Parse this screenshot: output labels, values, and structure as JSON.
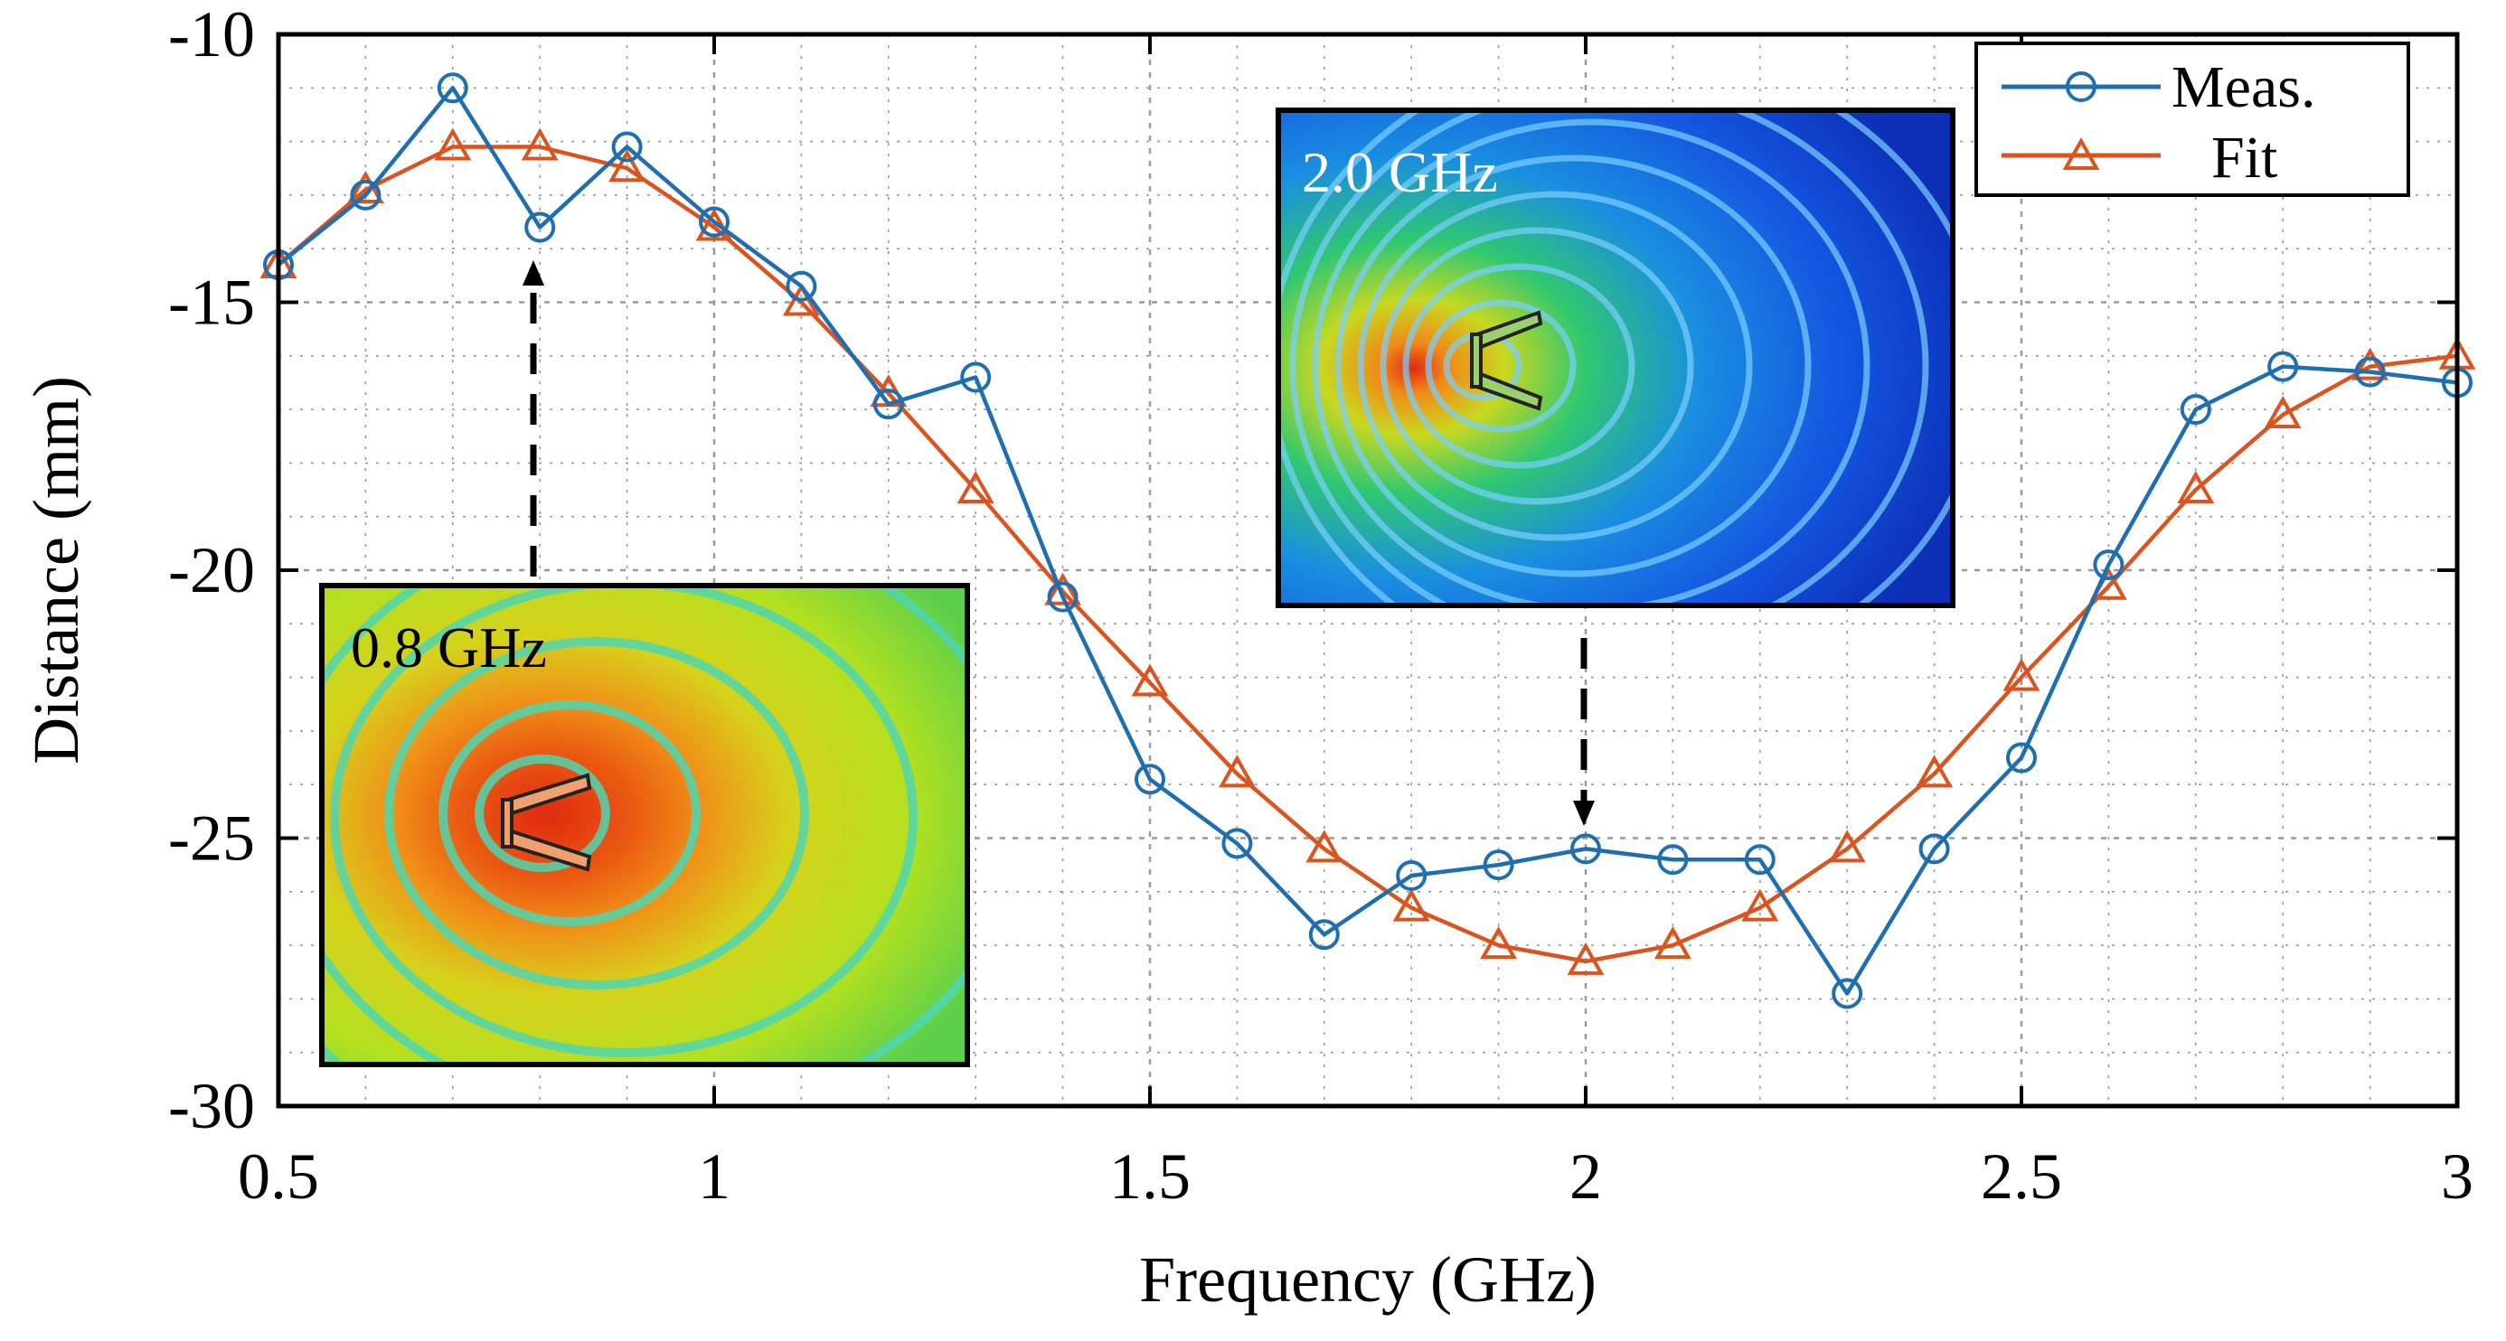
{
  "chart_data": {
    "type": "line",
    "title": "",
    "xlabel": "Frequency (GHz)",
    "ylabel": "Distance (mm)",
    "xlim": [
      0.5,
      3
    ],
    "ylim": [
      -30,
      -10
    ],
    "xticks": [
      0.5,
      1,
      1.5,
      2,
      2.5,
      3
    ],
    "xtick_labels": [
      "0.5",
      "1",
      "1.5",
      "2",
      "2.5",
      "3"
    ],
    "yticks": [
      -30,
      -25,
      -20,
      -15,
      -10
    ],
    "ytick_labels": [
      "-30",
      "-25",
      "-20",
      "-15",
      "-10"
    ],
    "grid": true,
    "legend_position": "top-right",
    "x": [
      0.5,
      0.6,
      0.7,
      0.8,
      0.9,
      1.0,
      1.1,
      1.2,
      1.3,
      1.4,
      1.5,
      1.6,
      1.7,
      1.8,
      1.9,
      2.0,
      2.1,
      2.2,
      2.3,
      2.4,
      2.5,
      2.6,
      2.7,
      2.8,
      2.9,
      3.0
    ],
    "series": [
      {
        "name": "Meas.",
        "color": "#1f6fb0",
        "marker": "circle",
        "values": [
          -14.3,
          -13.0,
          -11.0,
          -13.6,
          -12.1,
          -13.5,
          -14.7,
          -16.9,
          -16.4,
          -20.5,
          -23.9,
          -25.1,
          -26.8,
          -25.7,
          -25.5,
          -25.2,
          -25.4,
          -25.4,
          -27.9,
          -25.2,
          -23.5,
          -19.9,
          -17.0,
          -16.2,
          -16.3,
          -16.5
        ]
      },
      {
        "name": "Fit",
        "color": "#d9541e",
        "marker": "triangle",
        "values": [
          -14.3,
          -12.9,
          -12.1,
          -12.1,
          -12.5,
          -13.6,
          -15.0,
          -16.7,
          -18.5,
          -20.4,
          -22.1,
          -23.8,
          -25.2,
          -26.3,
          -27.0,
          -27.3,
          -27.0,
          -26.3,
          -25.2,
          -23.8,
          -22.0,
          -20.3,
          -18.5,
          -17.1,
          -16.2,
          -16.0
        ]
      }
    ],
    "insets": [
      {
        "label": "0.8 GHz",
        "points_to_x": 0.8,
        "theme": "low-frequency field map"
      },
      {
        "label": "2.0 GHz",
        "points_to_x": 2.0,
        "theme": "high-frequency field map"
      }
    ]
  }
}
